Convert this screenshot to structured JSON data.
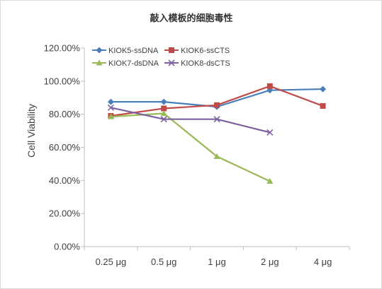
{
  "chart_data": {
    "type": "line",
    "title": "敲入模板的细胞毒性",
    "ylabel": "Cell Viability",
    "xlabel": "",
    "categories": [
      "0.25 μg",
      "0.5 μg",
      "1 μg",
      "2 μg",
      "4 μg"
    ],
    "ylim": [
      0,
      120
    ],
    "yticks": [
      0,
      20,
      40,
      60,
      80,
      100,
      120
    ],
    "ytick_labels": [
      "0.00%",
      "20.00%",
      "40.00%",
      "60.00%",
      "80.00%",
      "100.00%",
      "120.00%"
    ],
    "grid": false,
    "legend_position": "top",
    "series": [
      {
        "name": "KIOK5-ssDNA",
        "color": "#4a7ebb",
        "marker": "diamond",
        "values": [
          87.5,
          87.5,
          84.5,
          94.5,
          95.2
        ]
      },
      {
        "name": "KIOK6-ssCTS",
        "color": "#be4b48",
        "marker": "square",
        "values": [
          79,
          83.5,
          85.5,
          97,
          85
        ]
      },
      {
        "name": "KIOK7-dsDNA",
        "color": "#98b954",
        "marker": "triangle",
        "values": [
          78.5,
          80.5,
          54.5,
          39.5,
          null
        ]
      },
      {
        "name": "KIOK8-dsCTS",
        "color": "#7d60a0",
        "marker": "x",
        "values": [
          84,
          77,
          77,
          69,
          null
        ]
      }
    ]
  }
}
